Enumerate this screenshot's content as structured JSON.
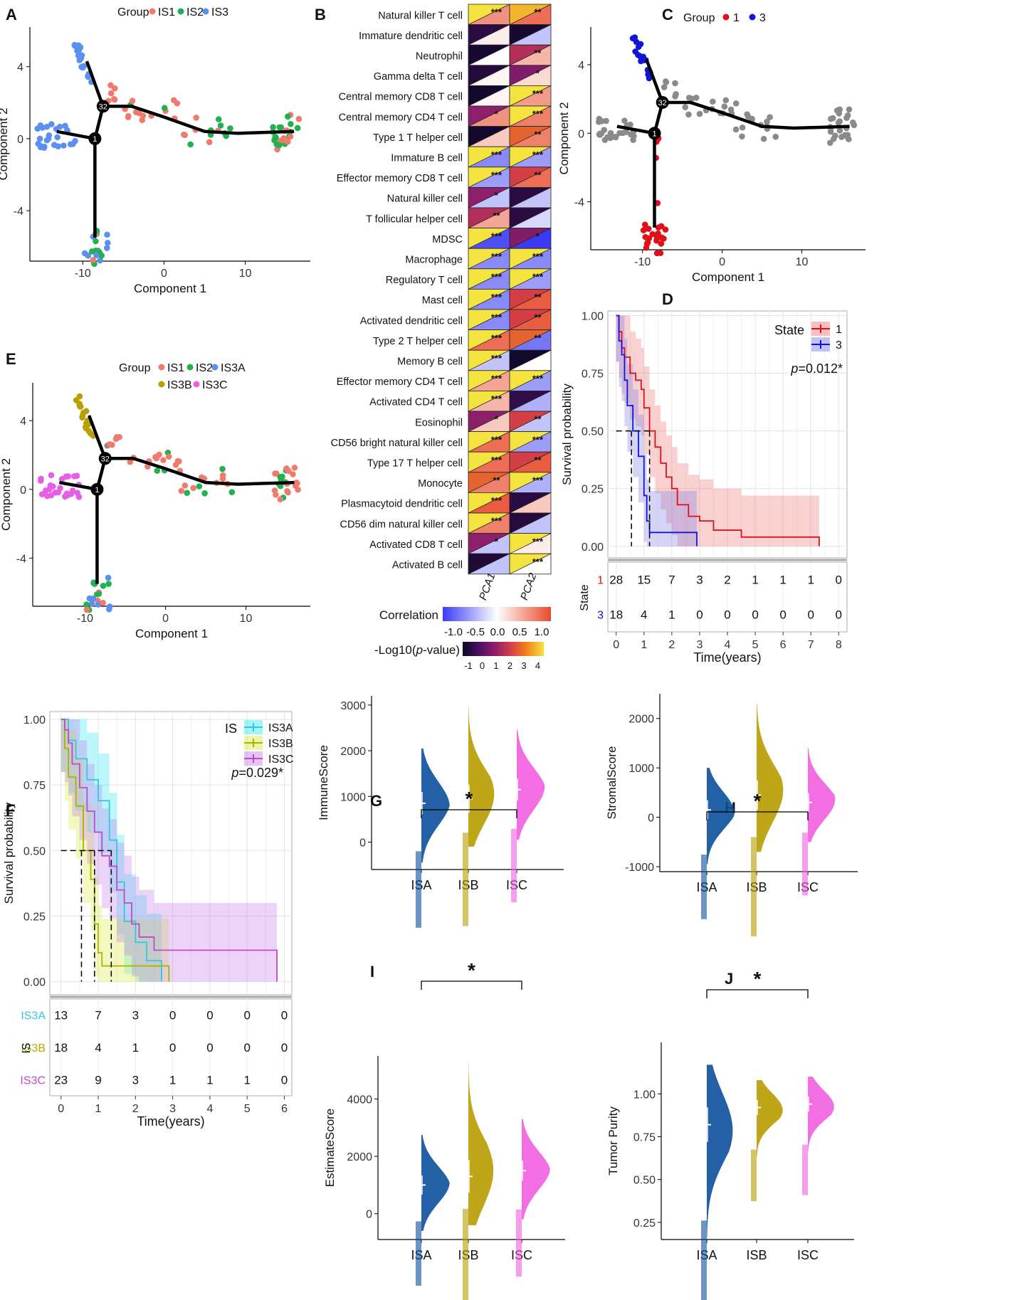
{
  "colors": {
    "IS1": "#ef7b6e",
    "IS2": "#22b14c",
    "IS3": "#5b8ff0",
    "IS3A": "#5b8ff0",
    "IS3B": "#b8a000",
    "IS3C": "#e65ee6",
    "state1": "#e0101a",
    "state3": "#1414d8",
    "grey": "#8a8a8a",
    "km_IS3A": "#35c7de",
    "km_IS3B": "#a8b400",
    "km_IS3C": "#c04ac8",
    "corr_low": "#3b3bf5",
    "corr_mid": "#ffffff",
    "corr_high": "#e84a2a",
    "violin_ISA": "#0b4f9c",
    "violin_ISB": "#b89c00",
    "violin_ISC": "#f25ee0"
  },
  "chart_data": [
    {
      "panel": "A",
      "type": "scatter",
      "title": "",
      "legend_title": "Group",
      "legend": [
        "IS1",
        "IS2",
        "IS3"
      ],
      "xlabel": "Component 1",
      "ylabel": "Component 2",
      "xlim": [
        -16.5,
        18
      ],
      "ylim": [
        -6.8,
        6.2
      ],
      "xticks": [
        -10,
        0,
        10
      ],
      "yticks": [
        -4,
        0,
        4
      ],
      "xtick_labels": [
        "-10",
        "0",
        "10"
      ],
      "ytick_labels": [
        "-4",
        "0",
        "4"
      ],
      "node_labels": [
        "32",
        "1"
      ],
      "groups": {
        "top_branch": "IS3",
        "left_branch": "IS3",
        "bottom_branch": "IS3"
      }
    },
    {
      "panel": "B",
      "type": "heatmap",
      "title": "",
      "columns": [
        "PCA1",
        "PCA2"
      ],
      "rows": [
        {
          "label": "Natural killer T cell",
          "corr": [
            0.6,
            0.8
          ],
          "logp": [
            4,
            3.5
          ],
          "sig": [
            "***",
            "**"
          ]
        },
        {
          "label": "Immature dendritic cell",
          "corr": [
            0.1,
            -0.3
          ],
          "logp": [
            -0.5,
            -0.8
          ],
          "sig": [
            "",
            ""
          ]
        },
        {
          "label": "Neutrophil",
          "corr": [
            0.0,
            0.4
          ],
          "logp": [
            -0.8,
            1.5
          ],
          "sig": [
            "",
            "**"
          ]
        },
        {
          "label": "Gamma delta T cell",
          "corr": [
            0.05,
            0.2
          ],
          "logp": [
            -0.6,
            0.8
          ],
          "sig": [
            "",
            "*"
          ]
        },
        {
          "label": "Central memory CD8 T cell",
          "corr": [
            0.05,
            0.55
          ],
          "logp": [
            -0.9,
            4
          ],
          "sig": [
            "",
            "***"
          ]
        },
        {
          "label": "Central memory CD4 T cell",
          "corr": [
            0.6,
            0.7
          ],
          "logp": [
            1,
            4
          ],
          "sig": [
            "*",
            "***"
          ]
        },
        {
          "label": "Type 1 T helper cell",
          "corr": [
            0.3,
            0.7
          ],
          "logp": [
            -0.9,
            2.5
          ],
          "sig": [
            "",
            "**"
          ]
        },
        {
          "label": "Immature B cell",
          "corr": [
            -0.6,
            -0.5
          ],
          "logp": [
            4,
            4
          ],
          "sig": [
            "***",
            "***"
          ]
        },
        {
          "label": "Effector memory CD8 T cell",
          "corr": [
            -0.5,
            0.8
          ],
          "logp": [
            4,
            2
          ],
          "sig": [
            "***",
            "**"
          ]
        },
        {
          "label": "Natural killer cell",
          "corr": [
            -0.3,
            -0.3
          ],
          "logp": [
            1,
            -0.5
          ],
          "sig": [
            "*",
            ""
          ]
        },
        {
          "label": "T follicular helper cell",
          "corr": [
            0.5,
            -0.2
          ],
          "logp": [
            1.5,
            -0.5
          ],
          "sig": [
            "**",
            ""
          ]
        },
        {
          "label": "MDSC",
          "corr": [
            -0.9,
            -1.0
          ],
          "logp": [
            4,
            0.8
          ],
          "sig": [
            "***",
            "*"
          ]
        },
        {
          "label": "Macrophage",
          "corr": [
            -0.6,
            -0.6
          ],
          "logp": [
            4,
            4
          ],
          "sig": [
            "***",
            "***"
          ]
        },
        {
          "label": "Regulatory T cell",
          "corr": [
            -0.6,
            -0.5
          ],
          "logp": [
            4,
            4
          ],
          "sig": [
            "***",
            "***"
          ]
        },
        {
          "label": "Mast cell",
          "corr": [
            -0.6,
            0.9
          ],
          "logp": [
            4,
            2
          ],
          "sig": [
            "***",
            "**"
          ]
        },
        {
          "label": "Activated dendritic cell",
          "corr": [
            -0.6,
            0.9
          ],
          "logp": [
            4,
            2
          ],
          "sig": [
            "***",
            "**"
          ]
        },
        {
          "label": "Type 2 T helper cell",
          "corr": [
            0.8,
            -0.7
          ],
          "logp": [
            4,
            2.5
          ],
          "sig": [
            "***",
            "**"
          ]
        },
        {
          "label": "Memory B cell",
          "corr": [
            -0.3,
            0.0
          ],
          "logp": [
            4,
            -0.9
          ],
          "sig": [
            "***",
            ""
          ]
        },
        {
          "label": "Effector memory CD4 T cell",
          "corr": [
            0.5,
            -0.5
          ],
          "logp": [
            4,
            4
          ],
          "sig": [
            "***",
            "***"
          ]
        },
        {
          "label": "Activated CD4 T cell",
          "corr": [
            0.4,
            -0.4
          ],
          "logp": [
            4,
            -0.4
          ],
          "sig": [
            "***",
            ""
          ]
        },
        {
          "label": "Eosinophil",
          "corr": [
            0.3,
            -0.3
          ],
          "logp": [
            1,
            2
          ],
          "sig": [
            "*",
            "**"
          ]
        },
        {
          "label": "CD56 bright natural killer cell",
          "corr": [
            0.8,
            -0.5
          ],
          "logp": [
            4,
            4
          ],
          "sig": [
            "***",
            "***"
          ]
        },
        {
          "label": "Type 17 T helper cell",
          "corr": [
            0.8,
            0.9
          ],
          "logp": [
            4,
            2
          ],
          "sig": [
            "***",
            "**"
          ]
        },
        {
          "label": "Monocyte",
          "corr": [
            0.7,
            -0.4
          ],
          "logp": [
            2.5,
            4
          ],
          "sig": [
            "**",
            "***"
          ]
        },
        {
          "label": "Plasmacytoid dendritic cell",
          "corr": [
            0.9,
            0.3
          ],
          "logp": [
            4,
            -0.5
          ],
          "sig": [
            "***",
            ""
          ]
        },
        {
          "label": "CD56 dim natural killer cell",
          "corr": [
            0.7,
            -0.3
          ],
          "logp": [
            4,
            -0.6
          ],
          "sig": [
            "***",
            ""
          ]
        },
        {
          "label": "Activated CD8 T cell",
          "corr": [
            -0.3,
            0.1
          ],
          "logp": [
            1,
            4
          ],
          "sig": [
            "*",
            "***"
          ]
        },
        {
          "label": "Activated B cell",
          "corr": [
            -0.3,
            0.0
          ],
          "logp": [
            -0.7,
            4
          ],
          "sig": [
            "",
            "***"
          ]
        }
      ],
      "corr_legend": {
        "title": "Correlation",
        "ticks": [
          "-1.0",
          "-0.5",
          "0.0",
          "0.5",
          "1.0"
        ]
      },
      "logp_legend": {
        "title_prefix": "-Log10(",
        "title_italic": "p",
        "title_suffix": "-value)",
        "ticks": [
          "-1",
          "0",
          "1",
          "2",
          "3",
          "4"
        ]
      }
    },
    {
      "panel": "C",
      "type": "scatter",
      "legend_title": "Group",
      "legend": [
        "1",
        "3"
      ],
      "xlabel": "Component 1",
      "ylabel": "Component 2",
      "xlim": [
        -16.5,
        18
      ],
      "ylim": [
        -6.8,
        6.2
      ],
      "xtick_labels": [
        "-10",
        "0",
        "10"
      ],
      "ytick_labels": [
        "-4",
        "0",
        "4"
      ],
      "node_labels": [
        "32",
        "1"
      ]
    },
    {
      "panel": "D",
      "type": "line",
      "subtype": "kaplan-meier",
      "xlabel": "Time(years)",
      "ylabel": "Survival probability",
      "legend_title": "State",
      "legend": [
        "1",
        "3"
      ],
      "pvalue_italic": "p",
      "pvalue_rest": "=0.012*",
      "xlim": [
        -0.3,
        8.3
      ],
      "ylim": [
        -0.05,
        1.02
      ],
      "xtick_labels": [
        "0",
        "1",
        "2",
        "3",
        "4",
        "5",
        "6",
        "7",
        "8"
      ],
      "ytick_labels": [
        "0.00",
        "0.25",
        "0.50",
        "0.75",
        "1.00"
      ],
      "series": [
        {
          "name": "1",
          "x": [
            0,
            0.1,
            0.2,
            0.3,
            0.5,
            0.7,
            0.9,
            1.0,
            1.2,
            1.4,
            1.6,
            1.8,
            2.0,
            2.2,
            2.6,
            3.0,
            3.5,
            4.5,
            5.5,
            7.3
          ],
          "y": [
            1.0,
            0.93,
            0.86,
            0.82,
            0.75,
            0.72,
            0.68,
            0.6,
            0.5,
            0.43,
            0.36,
            0.3,
            0.25,
            0.18,
            0.13,
            0.11,
            0.07,
            0.04,
            0.04,
            0.0
          ]
        },
        {
          "name": "3",
          "x": [
            0,
            0.1,
            0.2,
            0.3,
            0.4,
            0.6,
            0.8,
            1.0,
            1.1,
            1.2,
            1.4,
            2.9
          ],
          "y": [
            1.0,
            0.89,
            0.83,
            0.72,
            0.61,
            0.5,
            0.39,
            0.22,
            0.11,
            0.06,
            0.06,
            0.0
          ]
        }
      ],
      "median_lines": [
        0.55,
        1.2
      ],
      "risk_table": {
        "title": "State",
        "rows": [
          {
            "name": "1",
            "values": [
              "28",
              "15",
              "7",
              "3",
              "2",
              "1",
              "1",
              "1",
              "0"
            ]
          },
          {
            "name": "3",
            "values": [
              "18",
              "4",
              "1",
              "0",
              "0",
              "0",
              "0",
              "0",
              "0"
            ]
          }
        ]
      }
    },
    {
      "panel": "E",
      "type": "scatter",
      "legend_title": "Group",
      "legend": [
        "IS1",
        "IS2",
        "IS3A",
        "IS3B",
        "IS3C"
      ],
      "xlabel": "Component 1",
      "ylabel": "Component 2",
      "xlim": [
        -16.5,
        18
      ],
      "ylim": [
        -6.8,
        6.2
      ],
      "xtick_labels": [
        "-10",
        "0",
        "10"
      ],
      "ytick_labels": [
        "-4",
        "0",
        "4"
      ],
      "node_labels": [
        "32",
        "1"
      ]
    },
    {
      "panel": "F",
      "type": "line",
      "subtype": "kaplan-meier",
      "xlabel": "Time(years)",
      "ylabel": "Survival probability",
      "legend_title": "IS",
      "legend": [
        "IS3A",
        "IS3B",
        "IS3C"
      ],
      "pvalue_italic": "p",
      "pvalue_rest": "=0.029*",
      "xlim": [
        -0.3,
        6.2
      ],
      "ylim": [
        -0.05,
        1.03
      ],
      "xtick_labels": [
        "0",
        "1",
        "2",
        "3",
        "4",
        "5",
        "6"
      ],
      "ytick_labels": [
        "0.00",
        "0.25",
        "0.50",
        "0.75",
        "1.00"
      ],
      "series": [
        {
          "name": "IS3A",
          "x": [
            0,
            0.2,
            0.4,
            0.7,
            1.0,
            1.3,
            1.5,
            1.7,
            2.0,
            2.3,
            2.7
          ],
          "y": [
            1.0,
            0.92,
            0.85,
            0.77,
            0.69,
            0.54,
            0.38,
            0.23,
            0.15,
            0.08,
            0.0
          ]
        },
        {
          "name": "IS3B",
          "x": [
            0,
            0.1,
            0.2,
            0.4,
            0.6,
            0.8,
            0.9,
            1.0,
            1.1,
            2.9
          ],
          "y": [
            1.0,
            0.89,
            0.78,
            0.67,
            0.5,
            0.39,
            0.22,
            0.11,
            0.06,
            0.0
          ]
        },
        {
          "name": "IS3C",
          "x": [
            0,
            0.1,
            0.2,
            0.3,
            0.5,
            0.7,
            0.9,
            1.1,
            1.3,
            1.5,
            1.7,
            1.9,
            2.1,
            2.5,
            5.8
          ],
          "y": [
            1.0,
            0.96,
            0.91,
            0.83,
            0.74,
            0.65,
            0.57,
            0.48,
            0.44,
            0.35,
            0.3,
            0.22,
            0.17,
            0.12,
            0.0
          ]
        }
      ],
      "median_lines": [
        0.55,
        0.9,
        1.35
      ],
      "risk_table": {
        "title": "IS",
        "rows": [
          {
            "name": "IS3A",
            "values": [
              "13",
              "7",
              "3",
              "0",
              "0",
              "0",
              "0"
            ]
          },
          {
            "name": "IS3B",
            "values": [
              "18",
              "4",
              "1",
              "0",
              "0",
              "0",
              "0"
            ]
          },
          {
            "name": "IS3C",
            "values": [
              "23",
              "9",
              "3",
              "1",
              "1",
              "1",
              "0"
            ]
          }
        ]
      }
    },
    {
      "panel": "G",
      "type": "violin",
      "ylabel": "ImmuneScore",
      "categories": [
        "ISA",
        "ISB",
        "ISC"
      ],
      "ylim": [
        -600,
        3200
      ],
      "ytick_labels": [
        "0",
        "1000",
        "2000",
        "3000"
      ],
      "yticks": [
        0,
        1000,
        2000,
        3000
      ],
      "medians": [
        850,
        950,
        1150
      ],
      "ranges": [
        [
          -450,
          2050
        ],
        [
          -100,
          2950
        ],
        [
          50,
          2450
        ]
      ],
      "significance": "*"
    },
    {
      "panel": "H",
      "type": "violin",
      "ylabel": "StromalScore",
      "categories": [
        "ISA",
        "ISB",
        "ISC"
      ],
      "ylim": [
        -1100,
        2500
      ],
      "ytick_labels": [
        "-1000",
        "0",
        "1000",
        "2000"
      ],
      "yticks": [
        -1000,
        0,
        1000,
        2000
      ],
      "medians": [
        150,
        450,
        300
      ],
      "ranges": [
        [
          -950,
          1000
        ],
        [
          -700,
          2300
        ],
        [
          -500,
          1400
        ]
      ],
      "significance": "*"
    },
    {
      "panel": "I",
      "type": "violin",
      "ylabel": "EstimateScore",
      "categories": [
        "ISA",
        "ISB",
        "ISC"
      ],
      "ylim": [
        -900,
        5500
      ],
      "ytick_labels": [
        "0",
        "2000",
        "4000"
      ],
      "yticks": [
        0,
        2000,
        4000
      ],
      "medians": [
        1000,
        1300,
        1500
      ],
      "ranges": [
        [
          -600,
          2750
        ],
        [
          -400,
          5300
        ],
        [
          -200,
          3300
        ]
      ],
      "significance": "*"
    },
    {
      "panel": "J",
      "type": "violin",
      "ylabel": "Tumor Purity",
      "categories": [
        "ISA",
        "ISB",
        "ISC"
      ],
      "ylim": [
        0.15,
        1.3
      ],
      "ytick_labels": [
        "0.25",
        "0.50",
        "0.75",
        "1.00"
      ],
      "yticks": [
        0.25,
        0.5,
        0.75,
        1.0
      ],
      "medians": [
        0.82,
        0.92,
        0.94
      ],
      "ranges": [
        [
          0.16,
          1.17
        ],
        [
          0.63,
          1.08
        ],
        [
          0.66,
          1.1
        ]
      ],
      "significance": "*"
    }
  ]
}
